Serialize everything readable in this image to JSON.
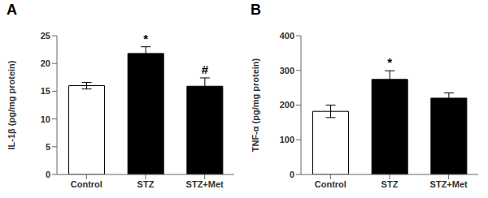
{
  "chart_data": [
    {
      "type": "bar",
      "title": "A",
      "categories": [
        "Control",
        "STZ",
        "STZ+Met"
      ],
      "values": [
        16.0,
        21.8,
        15.9
      ],
      "errors": [
        0.6,
        1.2,
        1.5
      ],
      "colors": [
        "#ffffff",
        "#000000",
        "#000000"
      ],
      "ylabel": "IL-1β (pg/mg protein)",
      "ylim": [
        0,
        25
      ],
      "yticks": [
        0,
        5,
        10,
        15,
        20,
        25
      ],
      "grid": false,
      "annotations": [
        {
          "text": "*",
          "category": "STZ"
        },
        {
          "text": "#",
          "category": "STZ+Met"
        }
      ]
    },
    {
      "type": "bar",
      "title": "B",
      "categories": [
        "Control",
        "STZ",
        "STZ+Met"
      ],
      "values": [
        182,
        274,
        220
      ],
      "errors": [
        18,
        25,
        15
      ],
      "colors": [
        "#ffffff",
        "#000000",
        "#000000"
      ],
      "ylabel": "TNF-α (pg/mg protein)",
      "ylim": [
        0,
        400
      ],
      "yticks": [
        0,
        100,
        200,
        300,
        400
      ],
      "grid": false,
      "annotations": [
        {
          "text": "*",
          "category": "STZ"
        }
      ]
    }
  ]
}
